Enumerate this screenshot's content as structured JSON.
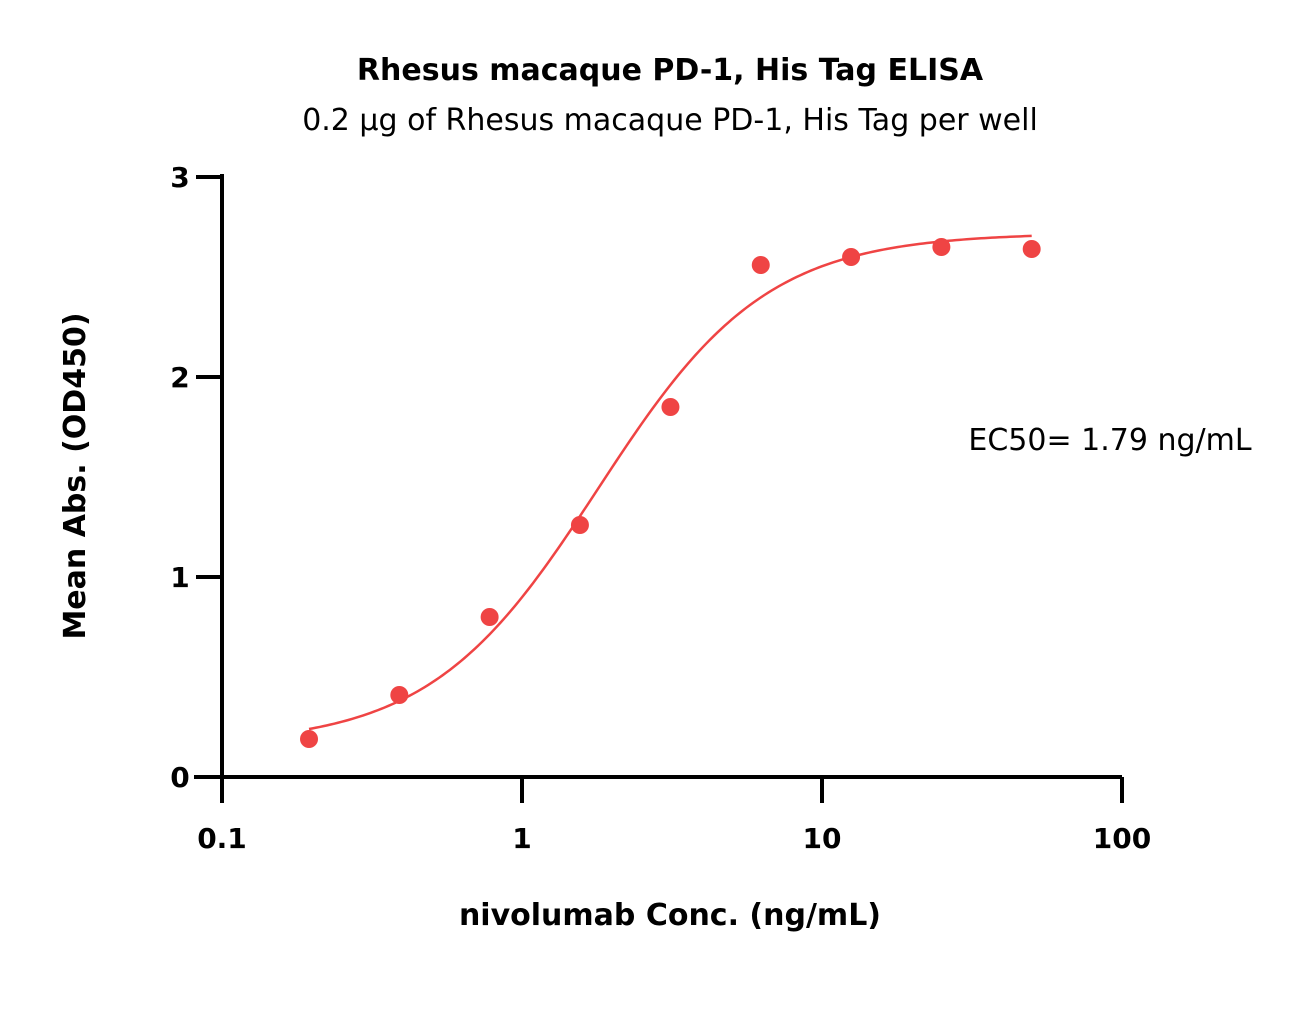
{
  "chart_data": {
    "type": "scatter",
    "title": "Rhesus macaque PD-1, His Tag ELISA",
    "subtitle": "0.2 µg of Rhesus macaque PD-1, His Tag per well",
    "xlabel": "nivolumab Conc. (ng/mL)",
    "ylabel": "Mean Abs. (OD450)",
    "x_scale": "log",
    "xlim": [
      0.1,
      100
    ],
    "ylim": [
      0,
      3
    ],
    "x_ticks": [
      0.1,
      1,
      10,
      100
    ],
    "x_tick_labels": [
      "0.1",
      "1",
      "10",
      "100"
    ],
    "y_ticks": [
      0,
      1,
      2,
      3
    ],
    "y_tick_labels": [
      "0",
      "1",
      "2",
      "3"
    ],
    "grid": false,
    "color": "#ef4444",
    "series": [
      {
        "x": [
          0.195,
          0.39,
          0.78,
          1.56,
          3.125,
          6.25,
          12.5,
          25,
          50
        ],
        "y": [
          0.19,
          0.41,
          0.8,
          1.26,
          1.85,
          2.56,
          2.6,
          2.65,
          2.64
        ]
      }
    ],
    "fit_curve": {
      "model": "4PL",
      "bottom": 0.16,
      "top": 2.72,
      "ec50": 1.79,
      "hill": 1.55,
      "x_range": [
        0.195,
        50
      ]
    },
    "annotation": "EC50= 1.79 ng/mL"
  }
}
